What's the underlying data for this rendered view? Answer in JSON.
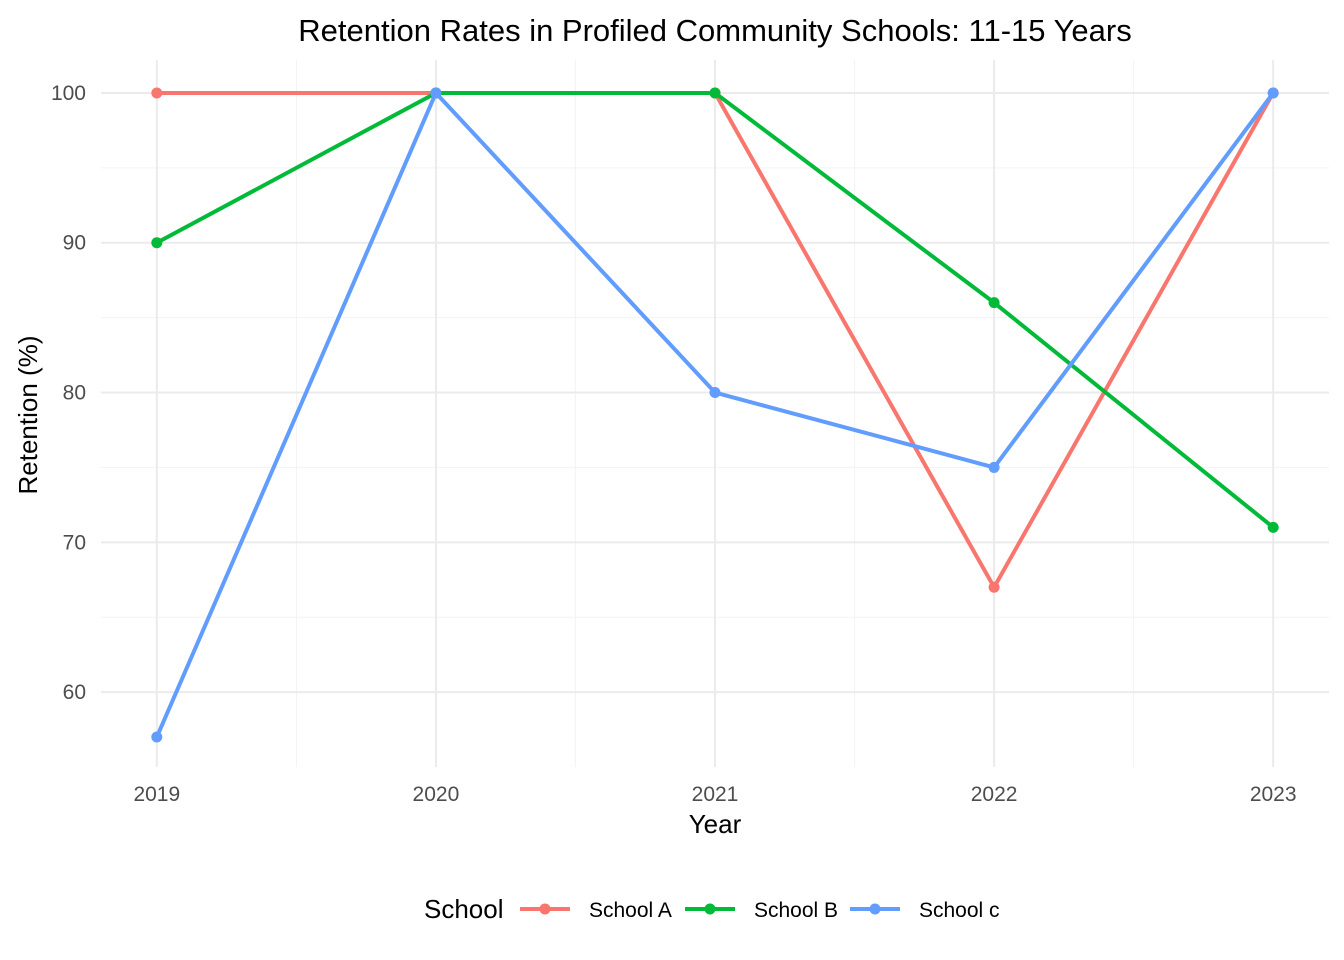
{
  "chart_data": {
    "type": "line",
    "title": "Retention Rates in Profiled Community Schools: 11-15 Years",
    "xlabel": "Year",
    "ylabel": "Retention (%)",
    "x": [
      2019,
      2020,
      2021,
      2022,
      2023
    ],
    "xlim": [
      2018.8,
      2023.2
    ],
    "ylim": [
      55,
      102.2
    ],
    "yticks": [
      60,
      70,
      80,
      90,
      100
    ],
    "grid": true,
    "legend": {
      "title": "School",
      "position": "bottom"
    },
    "series": [
      {
        "name": "School A",
        "color": "#F8766D",
        "values": [
          100,
          100,
          100,
          67,
          100
        ]
      },
      {
        "name": "School B",
        "color": "#00BA38",
        "values": [
          90,
          100,
          100,
          86,
          71
        ]
      },
      {
        "name": "School c",
        "color": "#619CFF",
        "values": [
          57,
          100,
          80,
          75,
          100
        ]
      }
    ]
  }
}
